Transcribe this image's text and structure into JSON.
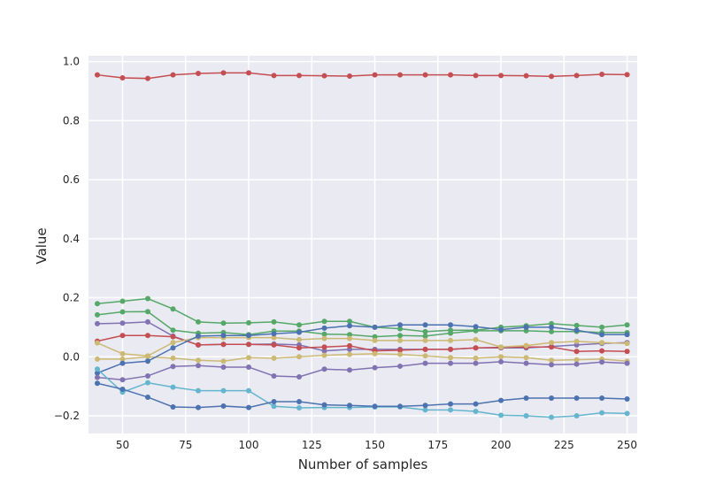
{
  "chart_data": {
    "type": "line",
    "title": "",
    "xlabel": "Number of samples",
    "ylabel": "Value",
    "xlim": [
      36.5,
      254
    ],
    "ylim": [
      -0.26,
      1.02
    ],
    "grid": true,
    "background": "#EAEAF2",
    "xticks": [
      50,
      75,
      100,
      125,
      150,
      175,
      200,
      225,
      250
    ],
    "yticks": [
      -0.2,
      0.0,
      0.2,
      0.4,
      0.6,
      0.8,
      1.0
    ],
    "ytick_labels": [
      "−0.2",
      "0.0",
      "0.2",
      "0.4",
      "0.6",
      "0.8",
      "1.0"
    ],
    "x": [
      40,
      50,
      60,
      70,
      80,
      90,
      100,
      110,
      120,
      130,
      140,
      150,
      160,
      170,
      180,
      190,
      200,
      210,
      220,
      230,
      240,
      250
    ],
    "series": [
      {
        "color": "#C44E52",
        "values": [
          0.955,
          0.945,
          0.943,
          0.955,
          0.96,
          0.962,
          0.962,
          0.953,
          0.953,
          0.952,
          0.951,
          0.955,
          0.955,
          0.955,
          0.955,
          0.953,
          0.953,
          0.952,
          0.95,
          0.953,
          0.957,
          0.956
        ]
      },
      {
        "color": "#55A868",
        "values": [
          0.18,
          0.188,
          0.197,
          0.162,
          0.118,
          0.114,
          0.115,
          0.118,
          0.108,
          0.12,
          0.12,
          0.1,
          0.095,
          0.085,
          0.09,
          0.09,
          0.1,
          0.105,
          0.112,
          0.106,
          0.1,
          0.108
        ]
      },
      {
        "color": "#55A868",
        "values": [
          0.142,
          0.152,
          0.153,
          0.09,
          0.08,
          0.082,
          0.075,
          0.087,
          0.087,
          0.077,
          0.075,
          0.068,
          0.072,
          0.07,
          0.08,
          0.088,
          0.088,
          0.088,
          0.085,
          0.086,
          0.082,
          0.082
        ]
      },
      {
        "color": "#8172B2",
        "values": [
          0.112,
          0.114,
          0.118,
          0.07,
          0.04,
          0.042,
          0.042,
          0.043,
          0.04,
          0.02,
          0.025,
          0.025,
          0.025,
          0.025,
          0.025,
          0.03,
          0.03,
          0.03,
          0.035,
          0.04,
          0.045,
          0.048
        ]
      },
      {
        "color": "#C44E52",
        "values": [
          0.053,
          0.072,
          0.072,
          0.068,
          0.04,
          0.042,
          0.042,
          0.04,
          0.03,
          0.033,
          0.037,
          0.02,
          0.022,
          0.025,
          0.025,
          0.03,
          0.032,
          0.033,
          0.033,
          0.018,
          0.02,
          0.018
        ]
      },
      {
        "color": "#CCB974",
        "values": [
          0.047,
          0.01,
          0.003,
          0.048,
          0.065,
          0.065,
          0.065,
          0.065,
          0.058,
          0.062,
          0.062,
          0.055,
          0.055,
          0.055,
          0.055,
          0.058,
          0.033,
          0.038,
          0.048,
          0.052,
          0.048,
          0.045
        ]
      },
      {
        "color": "#CCB974",
        "values": [
          -0.008,
          -0.008,
          0.0,
          -0.005,
          -0.012,
          -0.015,
          -0.003,
          -0.005,
          0.0,
          0.005,
          0.008,
          0.01,
          0.008,
          0.003,
          -0.003,
          -0.005,
          0.0,
          -0.003,
          -0.012,
          -0.01,
          -0.008,
          -0.015
        ]
      },
      {
        "color": "#4C72B0",
        "values": [
          -0.055,
          -0.022,
          -0.015,
          0.03,
          0.07,
          0.072,
          0.072,
          0.078,
          0.083,
          0.097,
          0.105,
          0.1,
          0.108,
          0.108,
          0.108,
          0.102,
          0.092,
          0.1,
          0.1,
          0.09,
          0.075,
          0.075
        ]
      },
      {
        "color": "#8172B2",
        "values": [
          -0.07,
          -0.078,
          -0.065,
          -0.033,
          -0.03,
          -0.035,
          -0.035,
          -0.065,
          -0.068,
          -0.042,
          -0.045,
          -0.037,
          -0.032,
          -0.022,
          -0.022,
          -0.022,
          -0.017,
          -0.022,
          -0.027,
          -0.025,
          -0.018,
          -0.022
        ]
      },
      {
        "color": "#64B5CD",
        "values": [
          -0.042,
          -0.12,
          -0.088,
          -0.103,
          -0.115,
          -0.115,
          -0.115,
          -0.168,
          -0.173,
          -0.172,
          -0.172,
          -0.17,
          -0.17,
          -0.18,
          -0.18,
          -0.185,
          -0.198,
          -0.2,
          -0.205,
          -0.2,
          -0.19,
          -0.192
        ]
      },
      {
        "color": "#4C72B0",
        "values": [
          -0.09,
          -0.11,
          -0.137,
          -0.17,
          -0.172,
          -0.167,
          -0.172,
          -0.152,
          -0.152,
          -0.163,
          -0.165,
          -0.168,
          -0.168,
          -0.165,
          -0.16,
          -0.16,
          -0.148,
          -0.14,
          -0.14,
          -0.14,
          -0.14,
          -0.143
        ]
      }
    ]
  }
}
